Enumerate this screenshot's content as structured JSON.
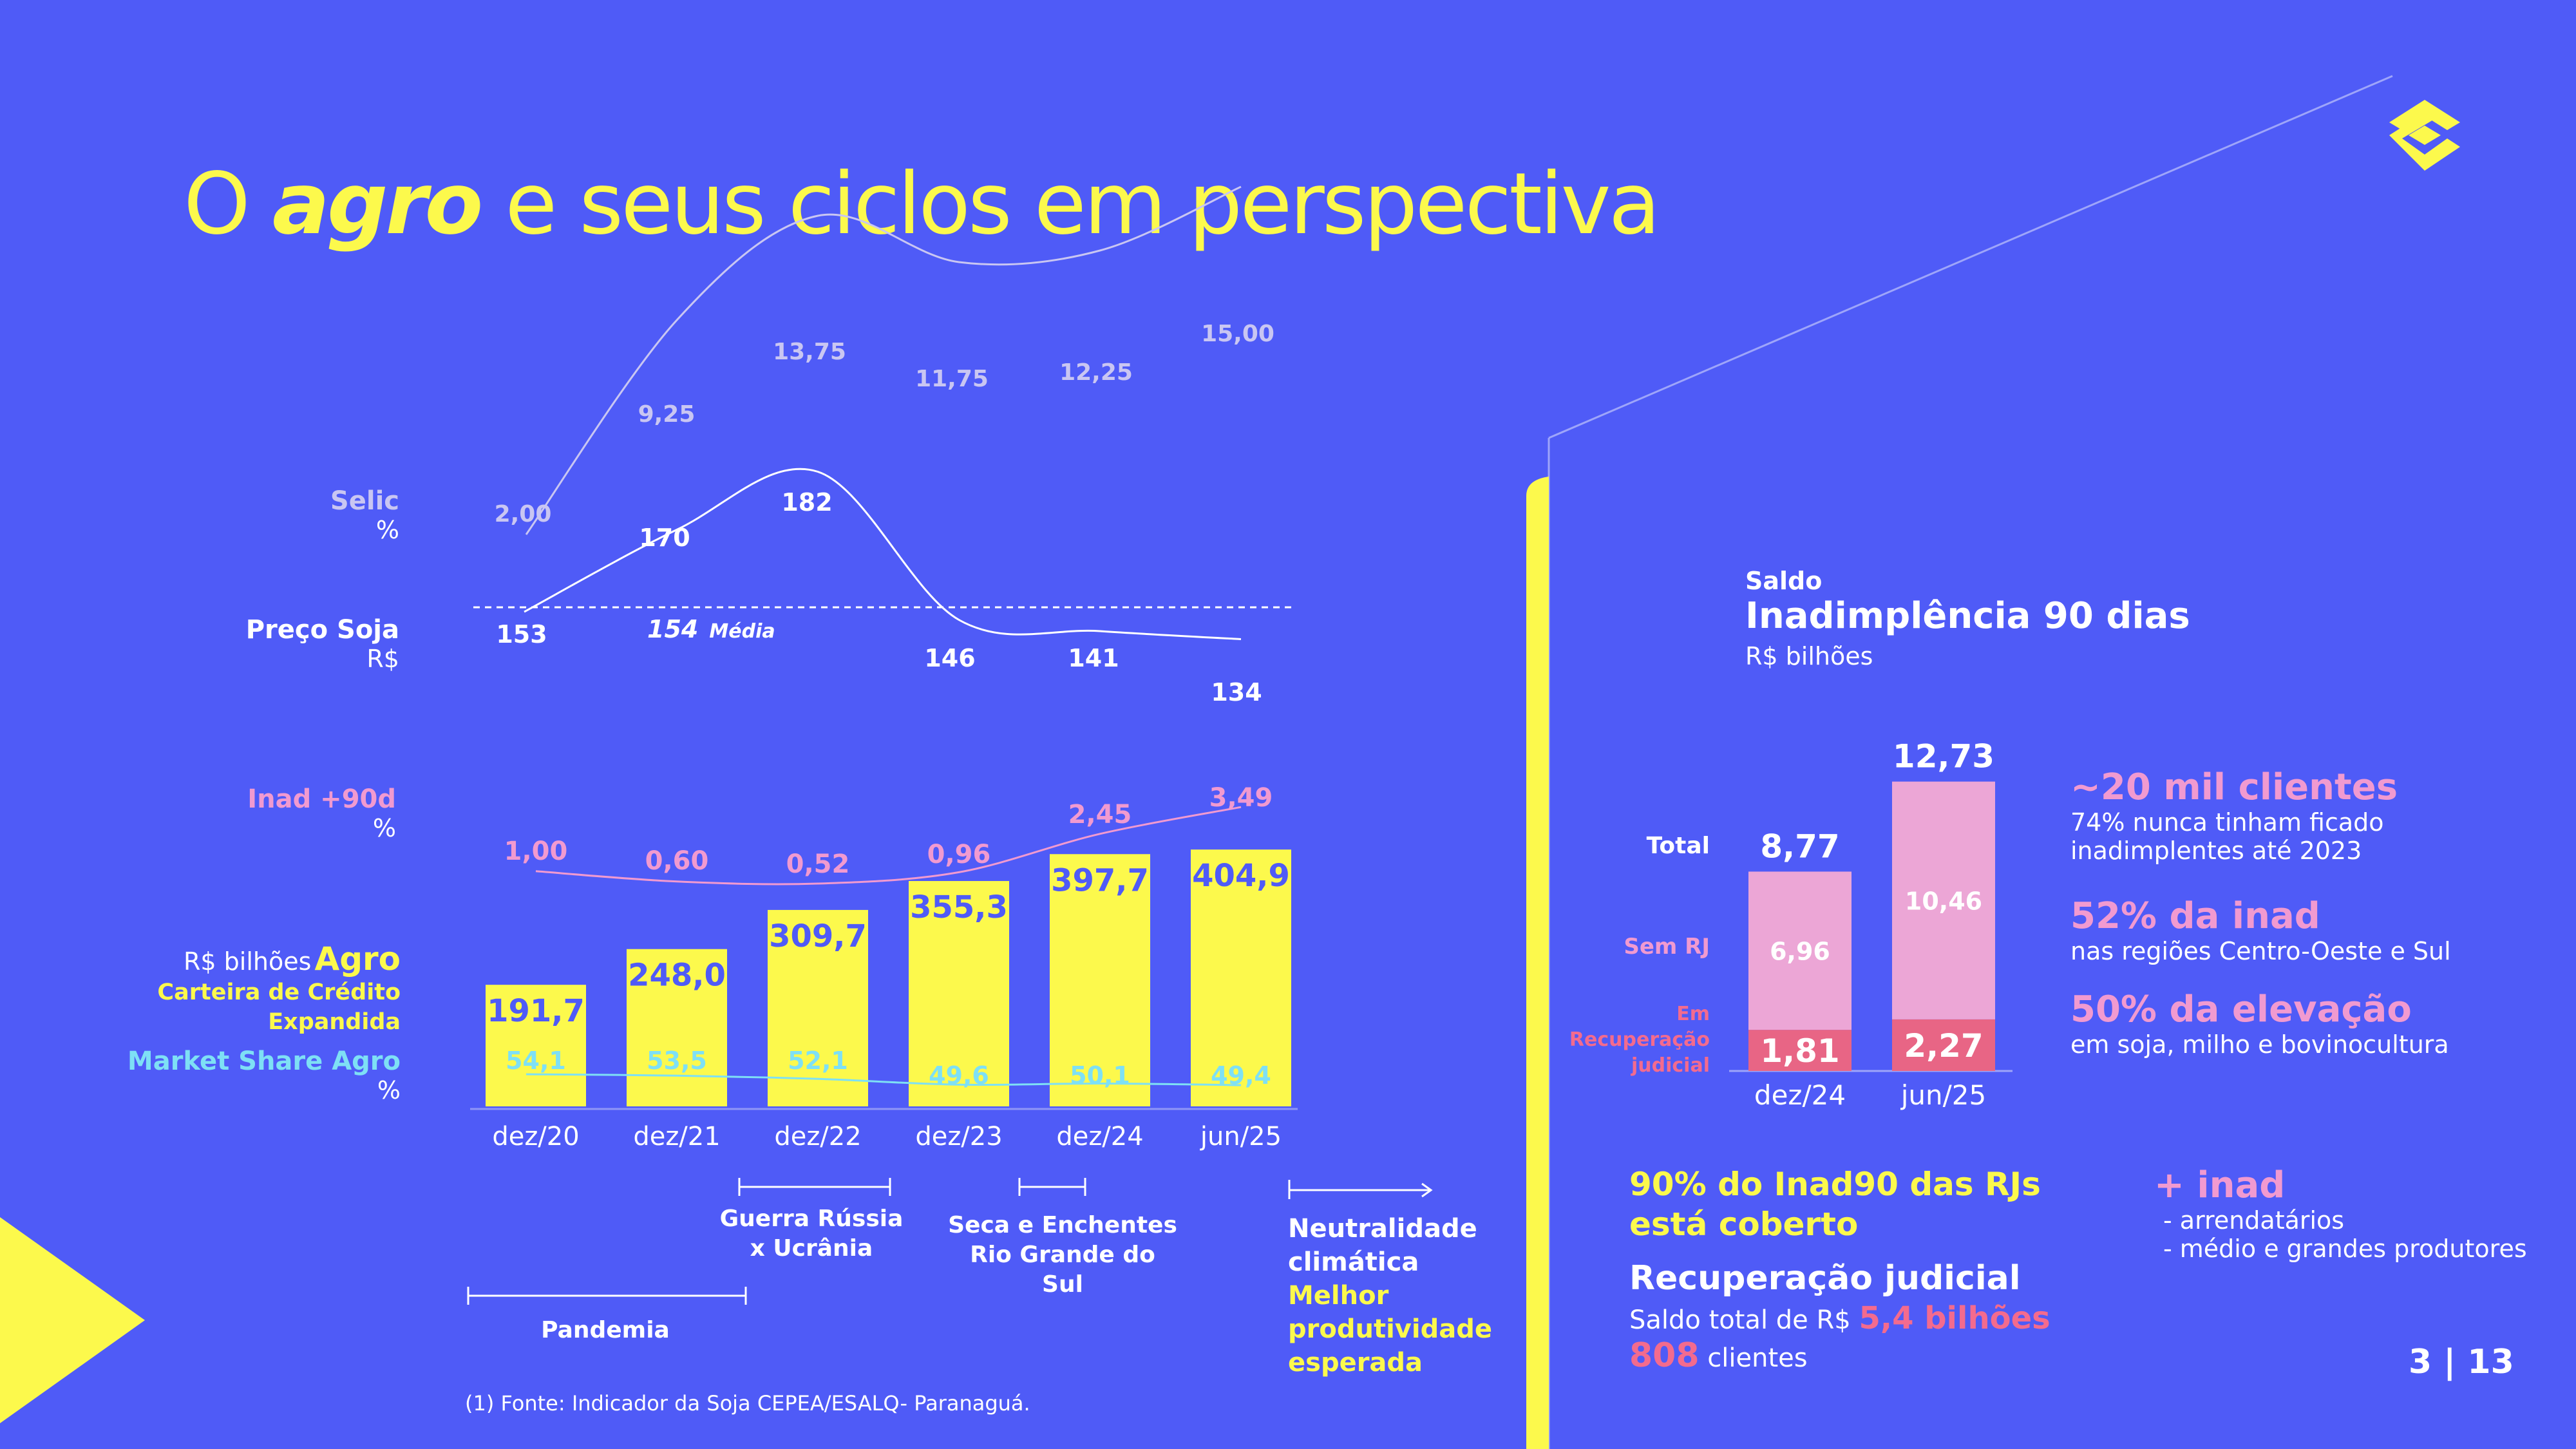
{
  "title": {
    "pre": "O",
    "bold": "agro",
    "post": "e seus ciclos em perspectiva"
  },
  "page_number": "3 | 13",
  "footnote": "(1) Fonte: Indicador da Soja CEPEA/ESALQ- Paranaguá.",
  "left_labels": {
    "selic": "Selic",
    "selic_unit": "%",
    "soja": "Preço Soja",
    "soja_unit": "R$",
    "inad": "Inad +90d",
    "inad_unit": "%",
    "agro_unit": "R$ bilhões",
    "agro": "Agro",
    "carteira1": "Carteira de Crédito",
    "carteira2": "Expandida",
    "ms": "Market Share Agro",
    "ms_unit": "%"
  },
  "soja_media": {
    "value": "154",
    "label": "Média"
  },
  "events": {
    "guerra1": "Guerra Rússia",
    "guerra2": "x Ucrânia",
    "seca1": "Seca e Enchentes",
    "seca2": "Rio Grande do",
    "seca3": "Sul",
    "neutral1": "Neutralidade",
    "neutral2": "climática",
    "melhor1": "Melhor",
    "melhor2": "produtividade",
    "melhor3": "esperada",
    "pandemia": "Pandemia"
  },
  "chart_data": [
    {
      "type": "bar",
      "title": "",
      "categories": [
        "dez/20",
        "dez/21",
        "dez/22",
        "dez/23",
        "dez/24",
        "jun/25"
      ],
      "series": [
        {
          "name": "Carteira de Crédito Expandida Agro (R$ bilhões)",
          "values": [
            191.7,
            248.0,
            309.7,
            355.3,
            397.7,
            404.9
          ],
          "labels": [
            "191,7",
            "248,0",
            "309,7",
            "355,3",
            "397,7",
            "404,9"
          ]
        },
        {
          "name": "Market Share Agro (%)",
          "type": "line",
          "values": [
            54.1,
            53.5,
            52.1,
            49.6,
            50.1,
            49.4
          ],
          "labels": [
            "54,1",
            "53,5",
            "52,1",
            "49,6",
            "50,1",
            "49,4"
          ]
        },
        {
          "name": "Inad +90d (%)",
          "type": "line",
          "values": [
            1.0,
            0.6,
            0.52,
            0.96,
            2.45,
            3.49
          ],
          "labels": [
            "1,00",
            "0,60",
            "0,52",
            "0,96",
            "2,45",
            "3,49"
          ]
        },
        {
          "name": "Preço Soja (R$)",
          "type": "line",
          "values": [
            153,
            170,
            182,
            146,
            141,
            134
          ],
          "labels": [
            "153",
            "170",
            "182",
            "146",
            "141",
            "134"
          ],
          "average": 154
        },
        {
          "name": "Selic (%)",
          "type": "line",
          "values": [
            2.0,
            9.25,
            13.75,
            11.75,
            12.25,
            15.0
          ],
          "labels": [
            "2,00",
            "9,25",
            "13,75",
            "11,75",
            "12,25",
            "15,00"
          ]
        }
      ],
      "colors": {
        "bars": "#FCF94C",
        "selic": "#C9C6F2",
        "soja": "#FFFFFF",
        "inad": "#F19AD0",
        "market_share": "#7EE0F5"
      }
    },
    {
      "type": "bar",
      "title": "Inadimplência 90 dias",
      "subtitle": "Saldo",
      "unit": "R$ bilhões",
      "categories": [
        "dez/24",
        "jun/25"
      ],
      "series": [
        {
          "name": "Sem RJ",
          "values": [
            6.96,
            10.46
          ],
          "labels": [
            "6,96",
            "10,46"
          ]
        },
        {
          "name": "Em Recuperação judicial",
          "values": [
            1.81,
            2.27
          ],
          "labels": [
            "1,81",
            "2,27"
          ]
        }
      ],
      "totals": [
        8.77,
        12.73
      ],
      "total_labels": [
        "8,77",
        "12,73"
      ],
      "total_label": "Total",
      "sem_rj_label": "Sem RJ",
      "em_rec1": "Em",
      "em_rec2": "Recuperação",
      "em_rec3": "judicial",
      "colors": {
        "sem_rj": "#ECA6D6",
        "rj": "#E86585"
      }
    }
  ],
  "right_kpis": {
    "k1": "~20 mil clientes",
    "k1a": "74% nunca tinham ficado",
    "k1b": "inadimplentes até 2023",
    "k2": "52% da inad",
    "k2a": "nas regiões Centro-Oeste e Sul",
    "k3": "50% da elevação",
    "k3a": "em soja, milho e bovinocultura",
    "cov1": "90% do Inad90 das RJs",
    "cov2": "está coberto",
    "rec": "Recuperação judicial",
    "saldo_pre": "Saldo total de R$",
    "saldo_val": "5,4 bilhões",
    "cli_val": "808",
    "cli_label": "clientes",
    "inad_plus": "+ inad",
    "ip1": "- arrendatários",
    "ip2": "- médio e grandes produtores"
  }
}
